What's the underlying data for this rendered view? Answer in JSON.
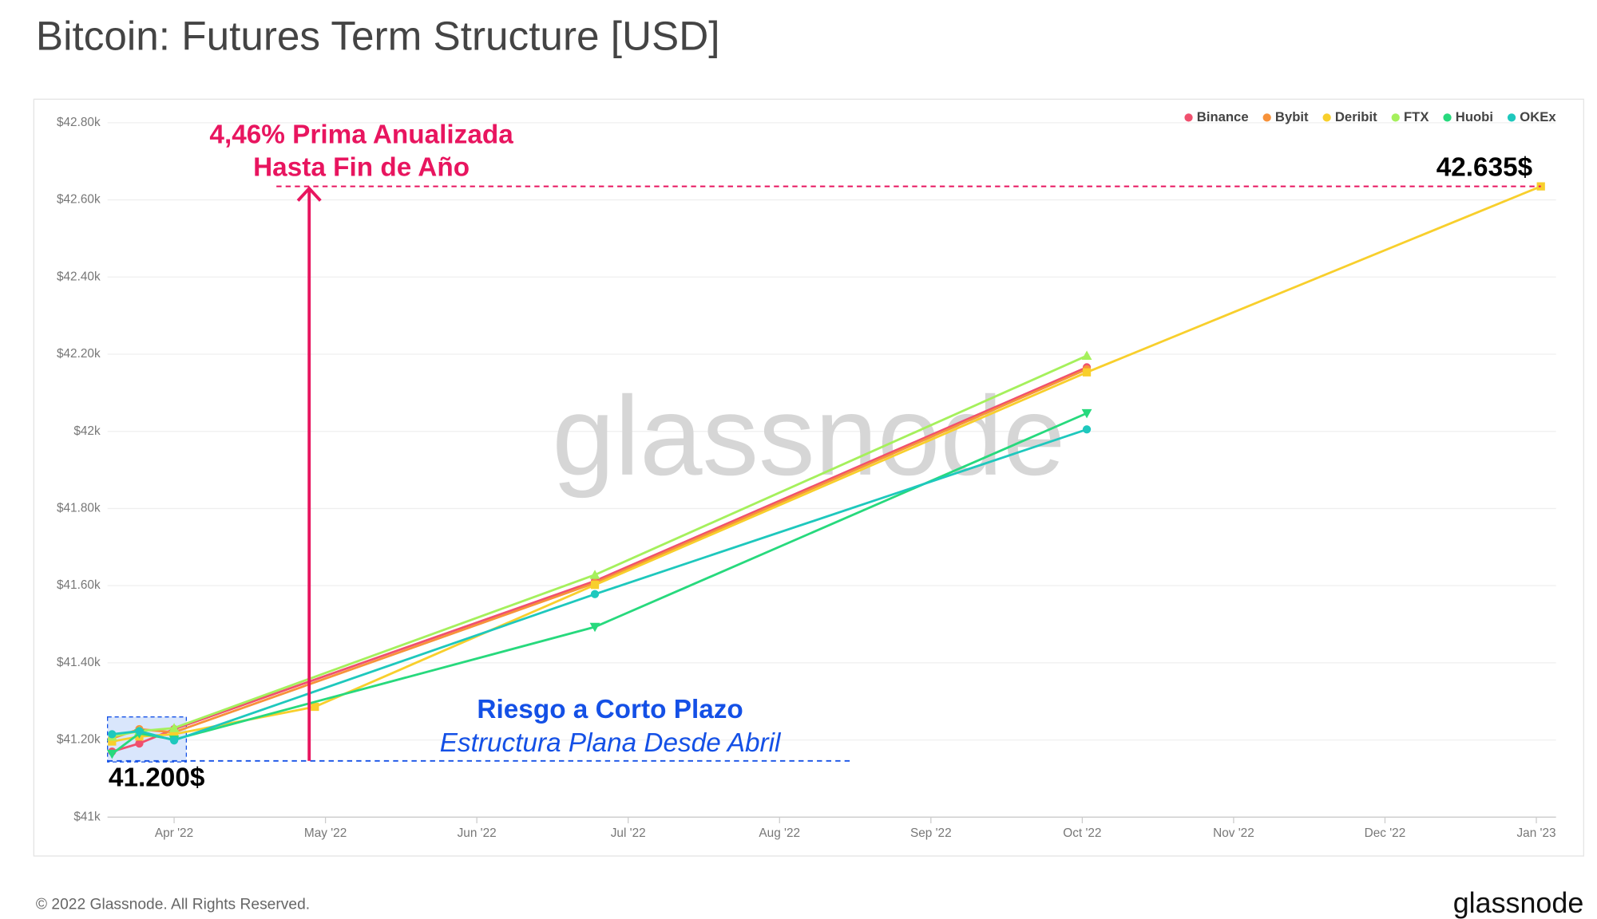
{
  "chart_data": {
    "type": "line",
    "title": "Bitcoin: Futures Term Structure [USD]",
    "xlim": [
      2.56,
      12.13
    ],
    "xticks": [
      {
        "value": 3,
        "label": "Apr '22"
      },
      {
        "value": 4,
        "label": "May '22"
      },
      {
        "value": 5,
        "label": "Jun '22"
      },
      {
        "value": 6,
        "label": "Jul '22"
      },
      {
        "value": 7,
        "label": "Aug '22"
      },
      {
        "value": 8,
        "label": "Sep '22"
      },
      {
        "value": 9,
        "label": "Oct '22"
      },
      {
        "value": 10,
        "label": "Nov '22"
      },
      {
        "value": 11,
        "label": "Dec '22"
      },
      {
        "value": 12,
        "label": "Jan '23"
      }
    ],
    "ylim": [
      41000,
      42800
    ],
    "yticks": [
      {
        "value": 41000,
        "label": "$41k"
      },
      {
        "value": 41200,
        "label": "$41.20k"
      },
      {
        "value": 41400,
        "label": "$41.40k"
      },
      {
        "value": 41600,
        "label": "$41.60k"
      },
      {
        "value": 41800,
        "label": "$41.80k"
      },
      {
        "value": 42000,
        "label": "$42k"
      },
      {
        "value": 42200,
        "label": "$42.20k"
      },
      {
        "value": 42400,
        "label": "$42.40k"
      },
      {
        "value": 42600,
        "label": "$42.60k"
      },
      {
        "value": 42800,
        "label": "$42.80k"
      }
    ],
    "grid": true,
    "legend": "top-right",
    "series": [
      {
        "name": "Binance",
        "color": "#f0506e",
        "marker": "circle",
        "x": [
          2.59,
          2.77,
          3.0,
          5.78,
          9.03
        ],
        "values": [
          41170,
          41191,
          41228,
          41612,
          42166
        ]
      },
      {
        "name": "Bybit",
        "color": "#f7923a",
        "marker": "circle",
        "x": [
          2.59,
          2.77,
          3.0,
          5.78,
          9.03
        ],
        "values": [
          41204,
          41228,
          41220,
          41607,
          42161
        ]
      },
      {
        "name": "Deribit",
        "color": "#f8cf2c",
        "marker": "square",
        "x": [
          2.59,
          2.77,
          3.0,
          3.93,
          5.78,
          9.03,
          12.03
        ],
        "values": [
          41196,
          41209,
          41215,
          41286,
          41602,
          42153,
          42635
        ]
      },
      {
        "name": "FTX",
        "color": "#a5f05c",
        "marker": "triangle-up",
        "x": [
          2.59,
          2.77,
          3.0,
          5.78,
          9.03
        ],
        "values": [
          41209,
          41223,
          41231,
          41628,
          42196
        ]
      },
      {
        "name": "Huobi",
        "color": "#27d97d",
        "marker": "triangle-down",
        "x": [
          2.59,
          2.77,
          3.0,
          5.78,
          9.03
        ],
        "values": [
          41164,
          41217,
          41201,
          41493,
          42047
        ]
      },
      {
        "name": "OKEx",
        "color": "#1ec8bd",
        "marker": "circle",
        "x": [
          2.59,
          2.77,
          3.0,
          5.78,
          9.03
        ],
        "values": [
          41215,
          41223,
          41199,
          41578,
          42005
        ]
      }
    ],
    "annotations": {
      "premium_line1": "4,46% Prima Anualizada",
      "premium_line2": "Hasta Fin de Año",
      "end_price": "42.635$",
      "risk_title": "Riesgo a Corto Plazo",
      "risk_subtitle": "Estructura Plana Desde Abril",
      "start_price": "41.200$"
    },
    "watermark": "glassnode",
    "copyright": "© 2022 Glassnode. All Rights Reserved.",
    "brand": "glassnode"
  }
}
